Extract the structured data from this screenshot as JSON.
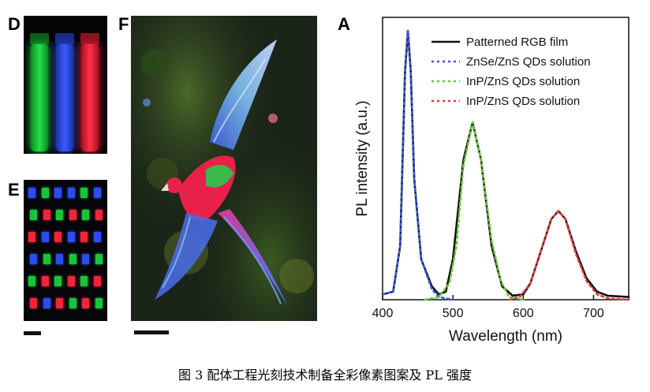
{
  "panels": {
    "d": {
      "letter": "D",
      "vial_colors": [
        "#19d43a",
        "#2b4cf0",
        "#f0243a"
      ]
    },
    "e": {
      "letter": "E",
      "pixel_rows": [
        [
          "#2b4cf0",
          "#19c43a",
          "#2b4cf0",
          "#2b4cf0",
          "#19c43a",
          "#2b4cf0"
        ],
        [
          "#19c43a",
          "#f0243a",
          "#19c43a",
          "#f0243a",
          "#19c43a",
          "#f0243a"
        ],
        [
          "#f0243a",
          "#2b4cf0",
          "#f0243a",
          "#2b4cf0",
          "#f0243a",
          "#2b4cf0"
        ],
        [
          "#2b4cf0",
          "#19c43a",
          "#2b4cf0",
          "#19c43a",
          "#2b4cf0",
          "#19c43a"
        ],
        [
          "#19c43a",
          "#f0243a",
          "#19c43a",
          "#f0243a",
          "#19c43a",
          "#f0243a"
        ],
        [
          "#f0243a",
          "#2b4cf0",
          "#f0243a",
          "#19c43a",
          "#f0243a",
          "#19c43a"
        ]
      ]
    },
    "f": {
      "letter": "F"
    },
    "a": {
      "letter": "A"
    }
  },
  "chart_data": {
    "type": "line",
    "xlabel": "Wavelength (nm)",
    "ylabel": "PL intensity (a.u.)",
    "xlim": [
      400,
      750
    ],
    "ylim": [
      0,
      1.05
    ],
    "xticks": [
      400,
      500,
      600,
      700
    ],
    "legend_position": "top-right",
    "series": [
      {
        "name": "Patterned RGB film",
        "color": "#111111",
        "dash": "solid",
        "points": [
          [
            400,
            0.02
          ],
          [
            415,
            0.03
          ],
          [
            425,
            0.2
          ],
          [
            432,
            0.85
          ],
          [
            436,
            1.0
          ],
          [
            440,
            0.85
          ],
          [
            445,
            0.45
          ],
          [
            455,
            0.15
          ],
          [
            470,
            0.05
          ],
          [
            480,
            0.02
          ],
          [
            490,
            0.03
          ],
          [
            500,
            0.15
          ],
          [
            515,
            0.52
          ],
          [
            528,
            0.66
          ],
          [
            540,
            0.52
          ],
          [
            555,
            0.2
          ],
          [
            570,
            0.05
          ],
          [
            585,
            0.015
          ],
          [
            600,
            0.02
          ],
          [
            610,
            0.06
          ],
          [
            625,
            0.18
          ],
          [
            640,
            0.3
          ],
          [
            650,
            0.33
          ],
          [
            660,
            0.3
          ],
          [
            675,
            0.18
          ],
          [
            690,
            0.08
          ],
          [
            705,
            0.03
          ],
          [
            720,
            0.015
          ],
          [
            750,
            0.01
          ]
        ]
      },
      {
        "name": "ZnSe/ZnS QDs solution",
        "color": "#3a59d8",
        "dash": "dot",
        "points": [
          [
            400,
            0.02
          ],
          [
            415,
            0.03
          ],
          [
            425,
            0.2
          ],
          [
            432,
            0.85
          ],
          [
            436,
            1.0
          ],
          [
            440,
            0.85
          ],
          [
            445,
            0.45
          ],
          [
            455,
            0.15
          ],
          [
            470,
            0.04
          ],
          [
            480,
            0.01
          ],
          [
            500,
            0.0
          ]
        ]
      },
      {
        "name": "InP/ZnS QDs solution",
        "color": "#68c43c",
        "dash": "dot",
        "points": [
          [
            460,
            0.0
          ],
          [
            480,
            0.01
          ],
          [
            495,
            0.06
          ],
          [
            505,
            0.2
          ],
          [
            515,
            0.5
          ],
          [
            528,
            0.66
          ],
          [
            540,
            0.52
          ],
          [
            555,
            0.22
          ],
          [
            568,
            0.07
          ],
          [
            580,
            0.01
          ],
          [
            600,
            0.0
          ]
        ]
      },
      {
        "name": "InP/ZnS QDs solution",
        "color": "#e03a3a",
        "dash": "dot",
        "points": [
          [
            580,
            0.0
          ],
          [
            595,
            0.01
          ],
          [
            610,
            0.06
          ],
          [
            625,
            0.18
          ],
          [
            640,
            0.3
          ],
          [
            650,
            0.33
          ],
          [
            660,
            0.3
          ],
          [
            675,
            0.17
          ],
          [
            690,
            0.07
          ],
          [
            705,
            0.02
          ],
          [
            720,
            0.005
          ],
          [
            750,
            0.0
          ]
        ]
      }
    ]
  },
  "caption": "图 3  配体工程光刻技术制备全彩像素图案及 PL 强度"
}
